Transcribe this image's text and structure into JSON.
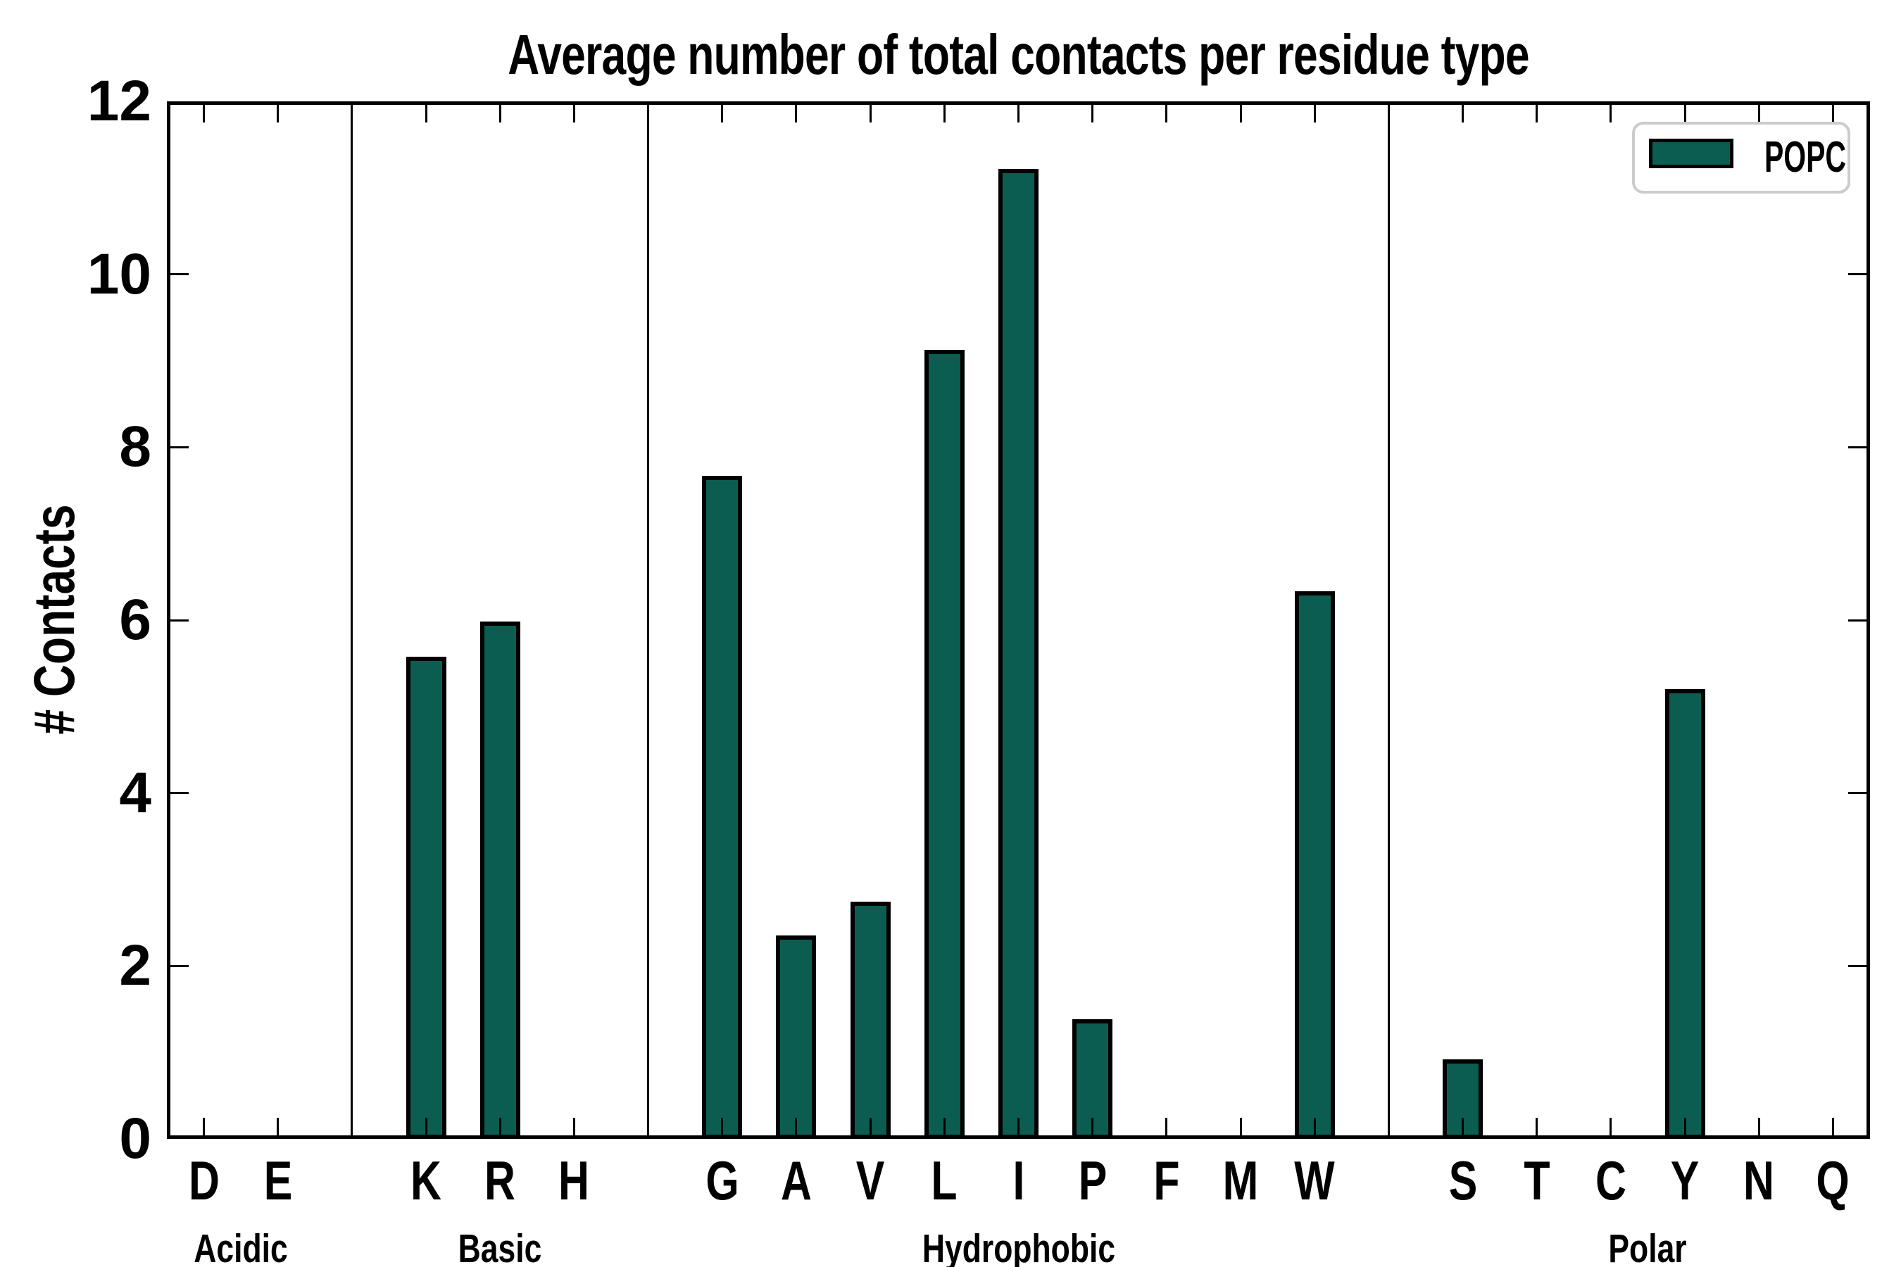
{
  "title": "Average number of total contacts per residue type",
  "ylabel": "# Contacts",
  "legend": {
    "label": "POPC",
    "position": "upper right"
  },
  "colors": {
    "bar_fill": "#0b5d51",
    "bar_edge": "#000000",
    "axis": "#000000",
    "legend_border": "#cccccc",
    "background": "#ffffff"
  },
  "y_axis": {
    "tick_labels": [
      "0",
      "2",
      "4",
      "6",
      "8",
      "10",
      "12"
    ],
    "ticks": [
      0,
      2,
      4,
      6,
      8,
      10,
      12
    ],
    "min": 0,
    "max": 12
  },
  "chart_data": {
    "type": "bar",
    "title": "Average number of total contacts per residue type",
    "xlabel": "",
    "ylabel": "# Contacts",
    "ylim": [
      0,
      12
    ],
    "grid": false,
    "legend_position": "upper right",
    "series_name": "POPC",
    "separator_gap_value": 0.02,
    "groups": [
      {
        "label": "Acidic",
        "residues": [
          "D",
          "E"
        ],
        "values": [
          0.02,
          0.02
        ]
      },
      {
        "label": "Basic",
        "residues": [
          "K",
          "R",
          "H"
        ],
        "values": [
          5.58,
          5.98,
          0.03
        ]
      },
      {
        "label": "Hydrophobic",
        "residues": [
          "G",
          "A",
          "V",
          "L",
          "I",
          "P",
          "F",
          "M",
          "W"
        ],
        "values": [
          7.67,
          2.35,
          2.74,
          9.13,
          11.22,
          1.38,
          0.03,
          0.03,
          6.33
        ]
      },
      {
        "label": "Polar",
        "residues": [
          "S",
          "T",
          "C",
          "Y",
          "N",
          "Q"
        ],
        "values": [
          0.92,
          0.03,
          0.02,
          5.2,
          0.03,
          0.03
        ]
      }
    ]
  }
}
